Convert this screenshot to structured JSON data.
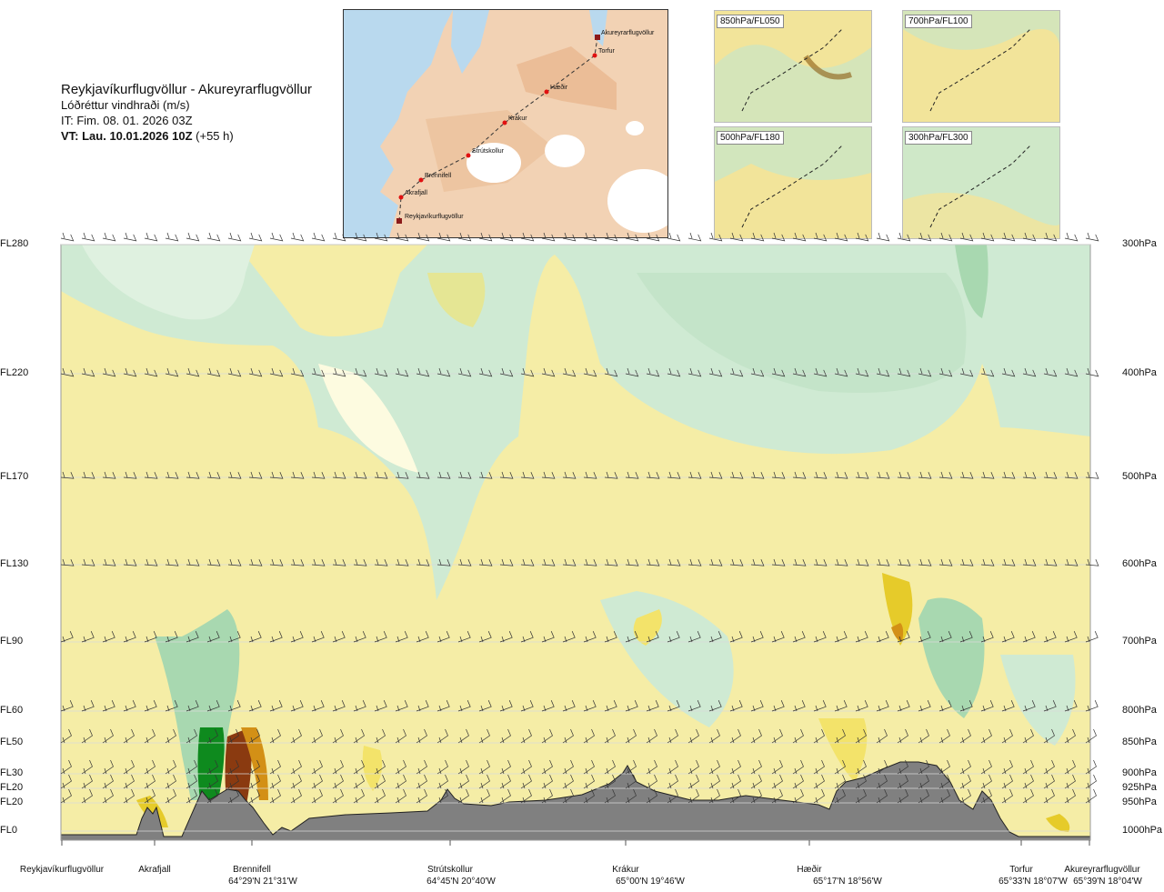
{
  "header": {
    "title": "Reykjavíkurflugvöllur - Akureyrarflugvöllur",
    "subtitle": "Lóðréttur vindhraði (m/s)",
    "issue_time": "IT: Fim. 08. 01. 2026 03Z",
    "valid_prefix": "VT: Lau. 10.01.2026 10Z",
    "valid_lead": "(+55 h)"
  },
  "route_map": {
    "points": [
      {
        "name": "Akureyrarflugvöllur"
      },
      {
        "name": "Torfur"
      },
      {
        "name": "Hæðir"
      },
      {
        "name": "Krákur"
      },
      {
        "name": "Strútskollur"
      },
      {
        "name": "Brennifell"
      },
      {
        "name": "Akrafjall"
      },
      {
        "name": "Reykjavíkurflugvöllur"
      }
    ]
  },
  "thumbnails": [
    {
      "label": "850hPa/FL050"
    },
    {
      "label": "700hPa/FL100"
    },
    {
      "label": "500hPa/FL180"
    },
    {
      "label": "300hPa/FL300"
    }
  ],
  "chart_data": {
    "type": "heatmap",
    "title": "Reykjavíkurflugvöllur - Akureyrarflugvöllur",
    "quantity": "Lóðréttur vindhraði (m/s)",
    "y_levels": [
      {
        "fl": "FL280",
        "hpa": "300hPa",
        "y": 269
      },
      {
        "fl": "FL220",
        "hpa": "400hPa",
        "y": 411
      },
      {
        "fl": "FL170",
        "hpa": "500hPa",
        "y": 525
      },
      {
        "fl": "FL130",
        "hpa": "600hPa",
        "y": 621
      },
      {
        "fl": "FL90",
        "hpa": "700hPa",
        "y": 706
      },
      {
        "fl": "FL60",
        "hpa": "800hPa",
        "y": 782
      },
      {
        "fl": "FL50",
        "hpa": "850hPa",
        "y": 817
      },
      {
        "fl": "FL30",
        "hpa": "900hPa",
        "y": 851
      },
      {
        "fl": "FL20",
        "hpa": "925hPa",
        "y": 867
      },
      {
        "fl": "FL20",
        "hpa": "950hPa",
        "y": 883
      },
      {
        "fl": "FL0",
        "hpa": "1000hPa",
        "y": 914
      }
    ],
    "locations": [
      {
        "name": "Reykjavíkurflugvöllur",
        "coord": ""
      },
      {
        "name": "Akrafjall",
        "coord": ""
      },
      {
        "name": "Brennifell",
        "coord": "64°29'N 21°31'W"
      },
      {
        "name": "Strútskollur",
        "coord": "64°45'N 20°40'W"
      },
      {
        "name": "Krákur",
        "coord": "65°00'N 19°46'W"
      },
      {
        "name": "Hæðir",
        "coord": "65°17'N 18°56'W"
      },
      {
        "name": "Torfur",
        "coord": "65°33'N 18°07'W"
      },
      {
        "name": "Akureyrarflugvöllur",
        "coord": "65°39'N 18°04'W"
      }
    ],
    "colors": {
      "strong_down": "#0e8a1e",
      "mod_down": "#66b371",
      "weak_down": "#a8d8b0",
      "light_down": "#cfead3",
      "neutral": "#f5eda6",
      "light_up": "#fdfbe0",
      "weak_up": "#f3e36a",
      "mod_up": "#e6cb2a",
      "strong_up": "#d39016",
      "extreme_up": "#8a3a10",
      "terrain": "#808080"
    }
  }
}
